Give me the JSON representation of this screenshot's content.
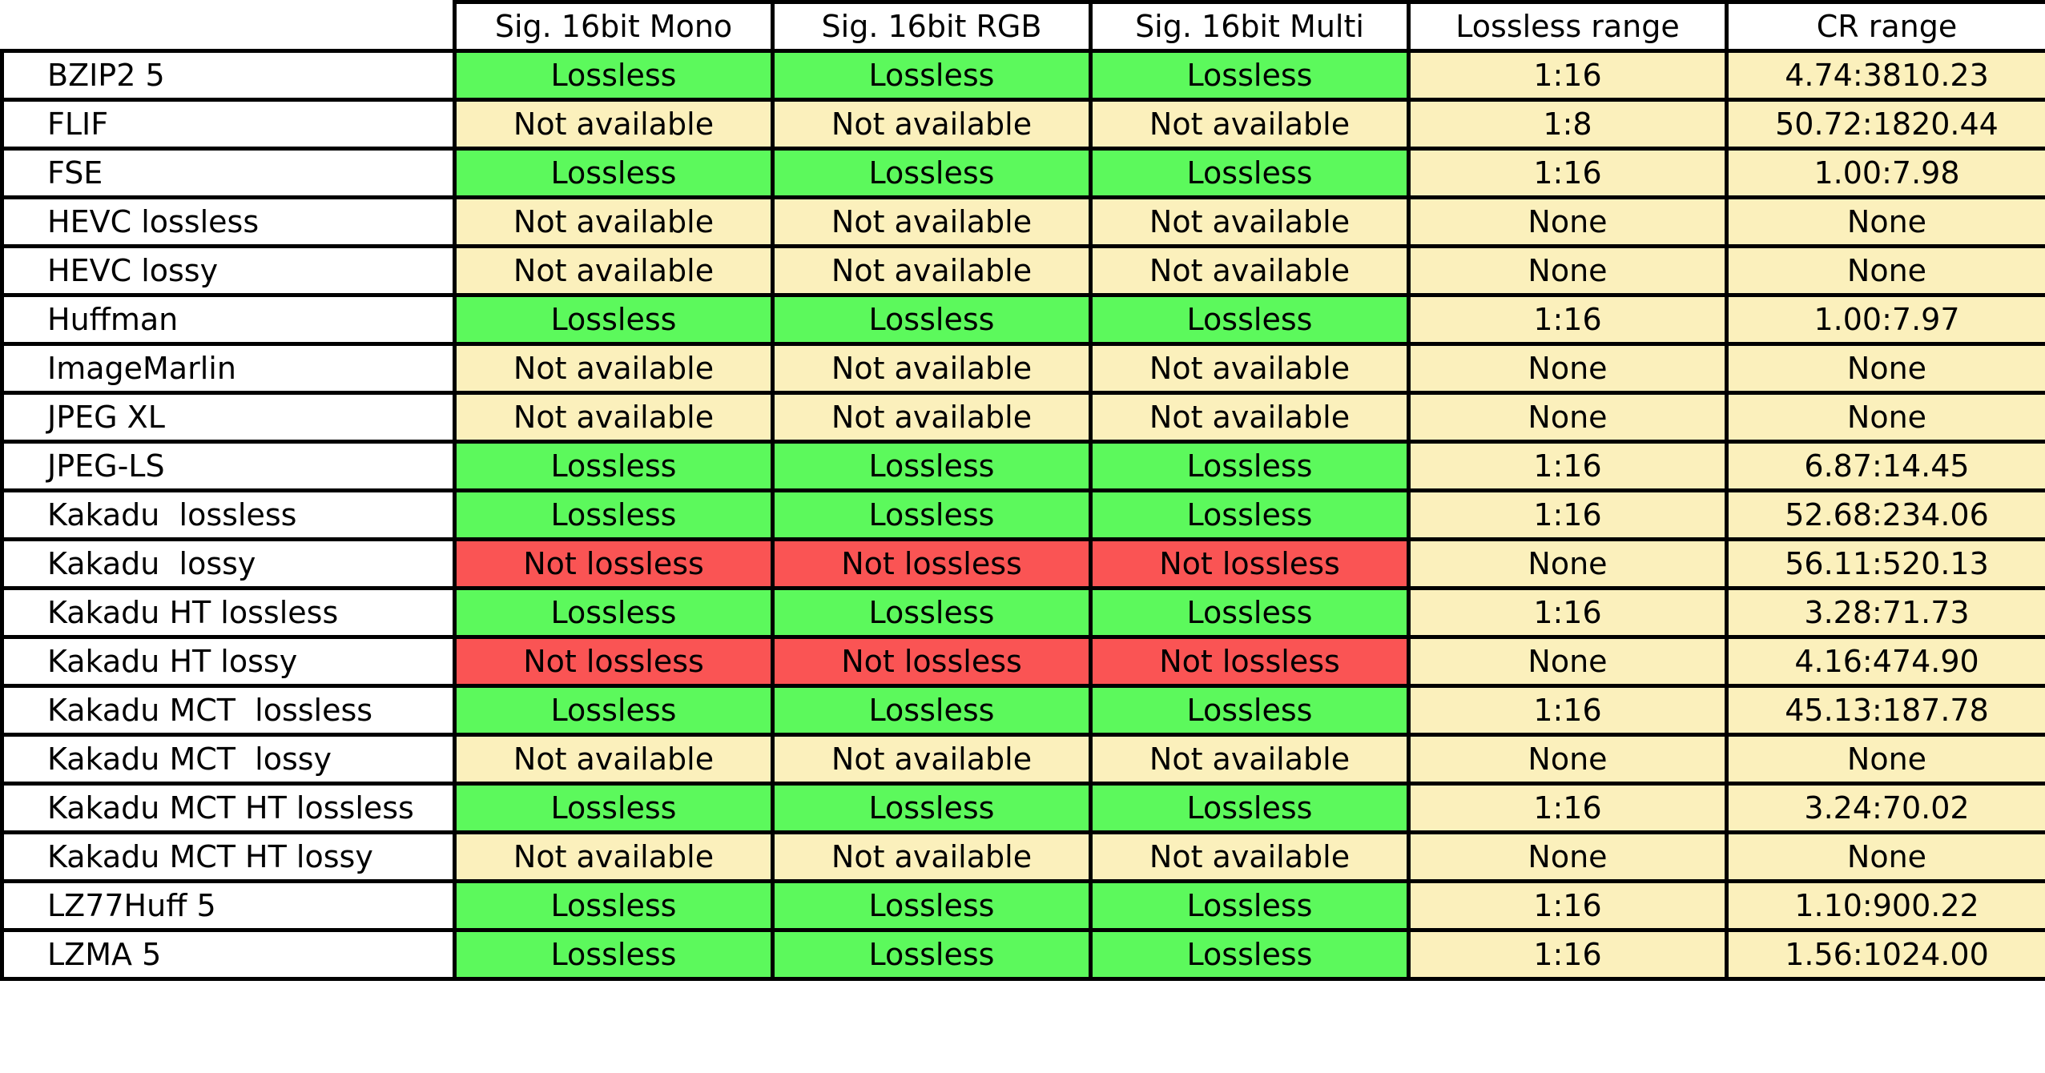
{
  "columns": [
    "Sig. 16bit Mono",
    "Sig. 16bit RGB",
    "Sig. 16bit Multi",
    "Lossless range",
    "CR range"
  ],
  "status_colors": {
    "Lossless": "#5cf95c",
    "Not available": "#fbf0bc",
    "Not lossless": "#fa5454",
    "range": "#fbf0bc"
  },
  "rows": [
    {
      "name": "BZIP2 5",
      "mono": "Lossless",
      "rgb": "Lossless",
      "multi": "Lossless",
      "lossless_range": "1:16",
      "cr_range": "4.74:3810.23"
    },
    {
      "name": "FLIF",
      "mono": "Not available",
      "rgb": "Not available",
      "multi": "Not available",
      "lossless_range": "1:8",
      "cr_range": "50.72:1820.44"
    },
    {
      "name": "FSE",
      "mono": "Lossless",
      "rgb": "Lossless",
      "multi": "Lossless",
      "lossless_range": "1:16",
      "cr_range": "1.00:7.98"
    },
    {
      "name": "HEVC lossless",
      "mono": "Not available",
      "rgb": "Not available",
      "multi": "Not available",
      "lossless_range": "None",
      "cr_range": "None"
    },
    {
      "name": "HEVC lossy",
      "mono": "Not available",
      "rgb": "Not available",
      "multi": "Not available",
      "lossless_range": "None",
      "cr_range": "None"
    },
    {
      "name": "Huffman",
      "mono": "Lossless",
      "rgb": "Lossless",
      "multi": "Lossless",
      "lossless_range": "1:16",
      "cr_range": "1.00:7.97"
    },
    {
      "name": "ImageMarlin",
      "mono": "Not available",
      "rgb": "Not available",
      "multi": "Not available",
      "lossless_range": "None",
      "cr_range": "None"
    },
    {
      "name": "JPEG XL",
      "mono": "Not available",
      "rgb": "Not available",
      "multi": "Not available",
      "lossless_range": "None",
      "cr_range": "None"
    },
    {
      "name": "JPEG-LS",
      "mono": "Lossless",
      "rgb": "Lossless",
      "multi": "Lossless",
      "lossless_range": "1:16",
      "cr_range": "6.87:14.45"
    },
    {
      "name": "Kakadu  lossless",
      "mono": "Lossless",
      "rgb": "Lossless",
      "multi": "Lossless",
      "lossless_range": "1:16",
      "cr_range": "52.68:234.06"
    },
    {
      "name": "Kakadu  lossy",
      "mono": "Not lossless",
      "rgb": "Not lossless",
      "multi": "Not lossless",
      "lossless_range": "None",
      "cr_range": "56.11:520.13"
    },
    {
      "name": "Kakadu HT lossless",
      "mono": "Lossless",
      "rgb": "Lossless",
      "multi": "Lossless",
      "lossless_range": "1:16",
      "cr_range": "3.28:71.73"
    },
    {
      "name": "Kakadu HT lossy",
      "mono": "Not lossless",
      "rgb": "Not lossless",
      "multi": "Not lossless",
      "lossless_range": "None",
      "cr_range": "4.16:474.90"
    },
    {
      "name": "Kakadu MCT  lossless",
      "mono": "Lossless",
      "rgb": "Lossless",
      "multi": "Lossless",
      "lossless_range": "1:16",
      "cr_range": "45.13:187.78"
    },
    {
      "name": "Kakadu MCT  lossy",
      "mono": "Not available",
      "rgb": "Not available",
      "multi": "Not available",
      "lossless_range": "None",
      "cr_range": "None"
    },
    {
      "name": "Kakadu MCT HT lossless",
      "mono": "Lossless",
      "rgb": "Lossless",
      "multi": "Lossless",
      "lossless_range": "1:16",
      "cr_range": "3.24:70.02"
    },
    {
      "name": "Kakadu MCT HT lossy",
      "mono": "Not available",
      "rgb": "Not available",
      "multi": "Not available",
      "lossless_range": "None",
      "cr_range": "None"
    },
    {
      "name": "LZ77Huff 5",
      "mono": "Lossless",
      "rgb": "Lossless",
      "multi": "Lossless",
      "lossless_range": "1:16",
      "cr_range": "1.10:900.22"
    },
    {
      "name": "LZMA 5",
      "mono": "Lossless",
      "rgb": "Lossless",
      "multi": "Lossless",
      "lossless_range": "1:16",
      "cr_range": "1.56:1024.00"
    }
  ]
}
